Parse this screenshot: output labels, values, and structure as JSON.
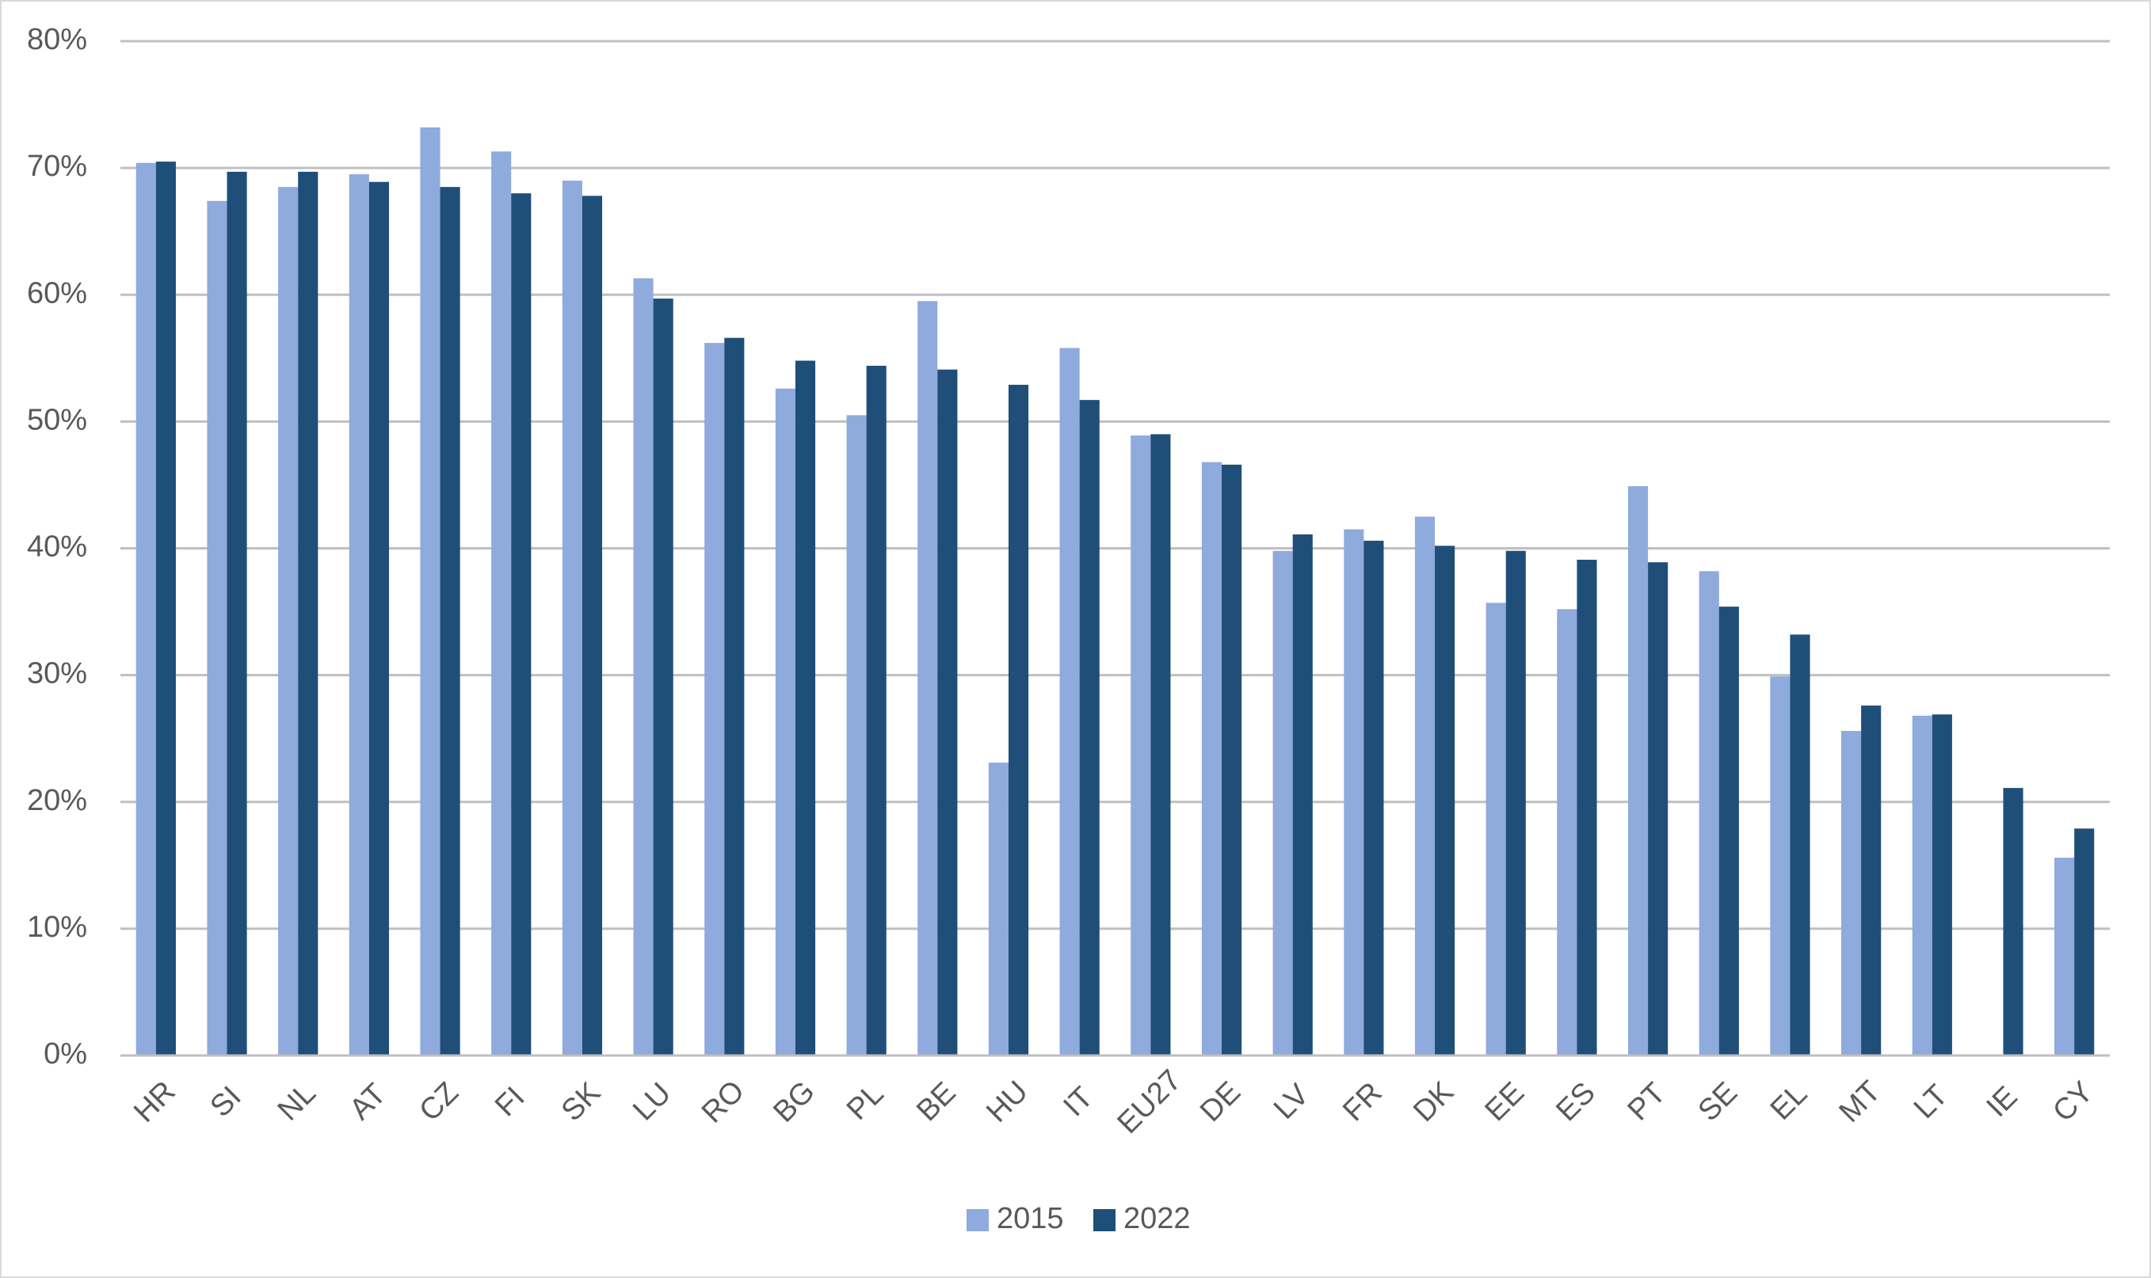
{
  "chart_data": {
    "type": "bar",
    "categories": [
      "HR",
      "SI",
      "NL",
      "AT",
      "CZ",
      "FI",
      "SK",
      "LU",
      "RO",
      "BG",
      "PL",
      "BE",
      "HU",
      "IT",
      "EU27",
      "DE",
      "LV",
      "FR",
      "DK",
      "EE",
      "ES",
      "PT",
      "SE",
      "EL",
      "MT",
      "LT",
      "IE",
      "CY"
    ],
    "series": [
      {
        "name": "2015",
        "color": "#8faadc",
        "values": [
          70.4,
          67.4,
          68.5,
          69.5,
          73.2,
          71.3,
          69.0,
          61.3,
          56.2,
          52.6,
          50.5,
          59.5,
          23.1,
          55.8,
          48.9,
          46.8,
          39.8,
          41.5,
          42.5,
          35.7,
          35.2,
          44.9,
          38.2,
          29.9,
          25.6,
          26.8,
          null,
          15.6
        ]
      },
      {
        "name": "2022",
        "color": "#1f4e79",
        "values": [
          70.5,
          69.7,
          69.7,
          68.9,
          68.5,
          68.0,
          67.8,
          59.7,
          56.6,
          54.8,
          54.4,
          54.1,
          52.9,
          51.7,
          49.0,
          46.6,
          41.1,
          40.6,
          40.2,
          39.8,
          39.1,
          38.9,
          35.4,
          33.2,
          27.6,
          26.9,
          21.1,
          17.9
        ]
      }
    ],
    "ylim": [
      0,
      80
    ],
    "yticks": [
      {
        "value": 0,
        "label": "0%"
      },
      {
        "value": 10,
        "label": "10%"
      },
      {
        "value": 20,
        "label": "20%"
      },
      {
        "value": 30,
        "label": "30%"
      },
      {
        "value": 40,
        "label": "40%"
      },
      {
        "value": 50,
        "label": "50%"
      },
      {
        "value": 60,
        "label": "60%"
      },
      {
        "value": 70,
        "label": "70%"
      },
      {
        "value": 80,
        "label": "80%"
      }
    ],
    "grid": true,
    "legend": "bottom"
  }
}
